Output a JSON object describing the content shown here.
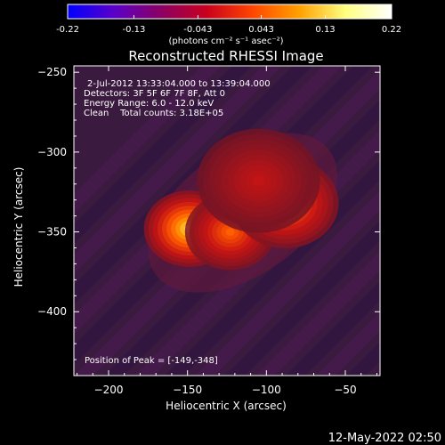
{
  "colorbar": {
    "ticks": [
      -0.22,
      -0.13,
      -0.043,
      0.043,
      0.13,
      0.22
    ],
    "tick_labels": [
      "-0.22",
      "-0.13",
      "-0.043",
      "0.043",
      "0.13",
      "0.22"
    ],
    "units": "(photons cm⁻² s⁻¹ asec⁻²)",
    "range": [
      -0.22,
      0.22
    ],
    "colors": [
      "#0000ff",
      "#5a00c8",
      "#8a0064",
      "#c8001e",
      "#ff4600",
      "#ffa000",
      "#ffff80",
      "#ffffff"
    ]
  },
  "chart_data": {
    "type": "heatmap",
    "title": "Reconstructed RHESSI Image",
    "xlabel": "Heliocentric X (arcsec)",
    "ylabel": "Heliocentric Y (arcsec)",
    "xlim": [
      -222,
      -28
    ],
    "ylim": [
      -440,
      -246
    ],
    "x_ticks": [
      -200,
      -150,
      -100,
      -50
    ],
    "x_tick_labels": [
      "−200",
      "−150",
      "−100",
      "−50"
    ],
    "y_ticks": [
      -250,
      -300,
      -350,
      -400
    ],
    "y_tick_labels": [
      "−250",
      "−300",
      "−350",
      "−400"
    ],
    "background_color": "#3a1a3e",
    "sources": [
      {
        "x": -149,
        "y": -348,
        "peak": 0.22,
        "width": 11
      },
      {
        "x": -123,
        "y": -350,
        "peak": 0.15,
        "width": 11
      },
      {
        "x": -88,
        "y": -332,
        "peak": 0.17,
        "width": 13
      },
      {
        "x": -105,
        "y": -318,
        "peak": 0.08,
        "width": 15
      }
    ],
    "annotations": [
      "2-Jul-2012 13:33:04.000 to 13:39:04.000",
      "Detectors: 3F 5F 6F 7F 8F, Att 0",
      "Energy Range: 6.0 - 12.0 keV",
      "Clean    Total counts: 3.18E+05"
    ],
    "peak_label": "Position of Peak = [-149,-348]"
  },
  "footer": {
    "timestamp": "12-May-2022 02:50"
  }
}
